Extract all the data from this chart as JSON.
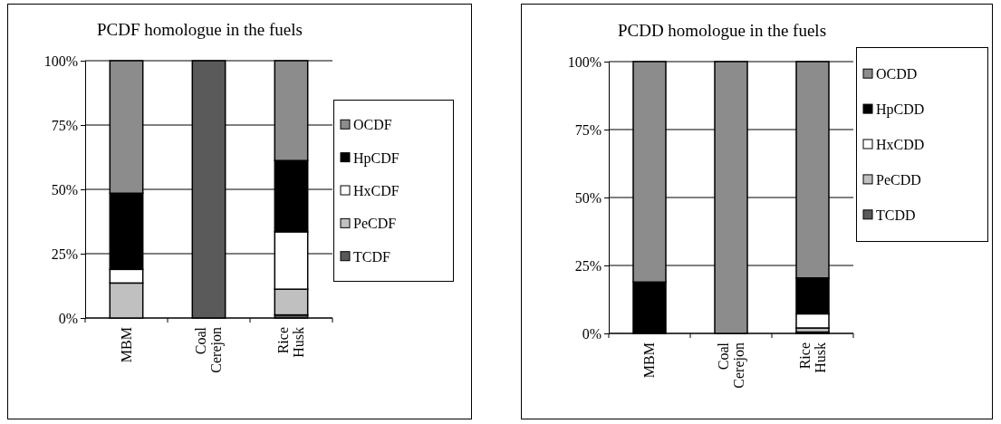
{
  "chart_data": [
    {
      "type": "bar",
      "stacked": true,
      "title": "PCDF homologue in the fuels",
      "categories": [
        "MBM",
        "Coal Cerejon",
        "Rice Husk"
      ],
      "ylim": [
        0,
        100
      ],
      "yticks": [
        {
          "value": 0,
          "label": "0%"
        },
        {
          "value": 25,
          "label": "25%"
        },
        {
          "value": 50,
          "label": "50%"
        },
        {
          "value": 75,
          "label": "75%"
        },
        {
          "value": 100,
          "label": "100%"
        }
      ],
      "grid": "y",
      "legend": "right",
      "series": [
        {
          "name": "TCDF",
          "color": "#5a5a5a",
          "values": [
            0,
            100,
            1.2
          ]
        },
        {
          "name": "PeCDF",
          "color": "#c0c0c0",
          "values": [
            13.6,
            0,
            10
          ]
        },
        {
          "name": "HxCDF",
          "color": "#ffffff",
          "values": [
            5.3,
            0,
            22.3
          ]
        },
        {
          "name": "HpCDF",
          "color": "#000000",
          "values": [
            29.6,
            0,
            27.7
          ]
        },
        {
          "name": "OCDF",
          "color": "#8c8c8c",
          "values": [
            51.5,
            0,
            38.8
          ]
        }
      ]
    },
    {
      "type": "bar",
      "stacked": true,
      "title": "PCDD homologue in the fuels",
      "categories": [
        "MBM",
        "Coal Cerejon",
        "Rice Husk"
      ],
      "ylim": [
        0,
        100
      ],
      "yticks": [
        {
          "value": 0,
          "label": "0%"
        },
        {
          "value": 25,
          "label": "25%"
        },
        {
          "value": 50,
          "label": "50%"
        },
        {
          "value": 75,
          "label": "75%"
        },
        {
          "value": 100,
          "label": "100%"
        }
      ],
      "grid": "y",
      "legend": "right",
      "series": [
        {
          "name": "TCDD",
          "color": "#5a5a5a",
          "values": [
            0,
            0,
            0.5
          ]
        },
        {
          "name": "PeCDD",
          "color": "#c0c0c0",
          "values": [
            0,
            0,
            1.5
          ]
        },
        {
          "name": "HxCDD",
          "color": "#ffffff",
          "values": [
            0,
            0,
            5.2
          ]
        },
        {
          "name": "HpCDD",
          "color": "#000000",
          "values": [
            18.9,
            0,
            13.2
          ]
        },
        {
          "name": "OCDD",
          "color": "#8c8c8c",
          "values": [
            81.1,
            100,
            79.6
          ]
        }
      ]
    }
  ]
}
